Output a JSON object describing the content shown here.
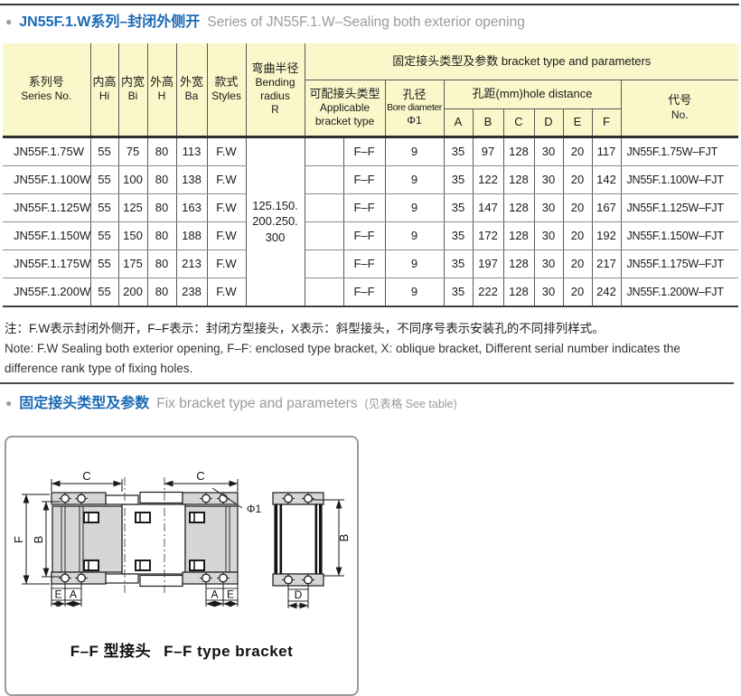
{
  "section1": {
    "bullet": "●",
    "title_zh": "JN55F.1.W系列–封闭外侧开",
    "title_en": "Series of JN55F.1.W–Sealing both exterior opening"
  },
  "table": {
    "group_header": "固定接头类型及参数 bracket type and parameters",
    "columns": {
      "series": {
        "zh": "系列号",
        "en": "Series No."
      },
      "inner_height": {
        "zh": "内高",
        "en": "Hi"
      },
      "inner_width": {
        "zh": "内宽",
        "en": "Bi"
      },
      "outer_height": {
        "zh": "外高",
        "en": "H"
      },
      "outer_width": {
        "zh": "外宽",
        "en": "Ba"
      },
      "styles": {
        "zh": "款式",
        "en": "Styles"
      },
      "bending": {
        "zh": "弯曲半径",
        "en_l1": "Bending",
        "en_l2": "radius",
        "en_l3": "R"
      },
      "applicable": {
        "zh": "可配接头类型",
        "en_l1": "Applicable",
        "en_l2": "bracket type"
      },
      "bore": {
        "zh": "孔径",
        "en": "Bore diameter",
        "sym": "Φ1"
      },
      "hole_distance": {
        "label": "孔距(mm)hole distance",
        "cols": [
          "A",
          "B",
          "C",
          "D",
          "E",
          "F"
        ]
      },
      "code": {
        "zh": "代号",
        "en": "No."
      }
    },
    "bending_radius": [
      "125.150.",
      "200.250.",
      "300"
    ],
    "rows": [
      [
        "JN55F.1.75W",
        "55",
        "75",
        "80",
        "113",
        "F.W",
        "F–F",
        "9",
        "35",
        "97",
        "128",
        "30",
        "20",
        "117",
        "JN55F.1.75W–FJT"
      ],
      [
        "JN55F.1.100W",
        "55",
        "100",
        "80",
        "138",
        "F.W",
        "F–F",
        "9",
        "35",
        "122",
        "128",
        "30",
        "20",
        "142",
        "JN55F.1.100W–FJT"
      ],
      [
        "JN55F.1.125W",
        "55",
        "125",
        "80",
        "163",
        "F.W",
        "F–F",
        "9",
        "35",
        "147",
        "128",
        "30",
        "20",
        "167",
        "JN55F.1.125W–FJT"
      ],
      [
        "JN55F.1.150W",
        "55",
        "150",
        "80",
        "188",
        "F.W",
        "F–F",
        "9",
        "35",
        "172",
        "128",
        "30",
        "20",
        "192",
        "JN55F.1.150W–FJT"
      ],
      [
        "JN55F.1.175W",
        "55",
        "175",
        "80",
        "213",
        "F.W",
        "F–F",
        "9",
        "35",
        "197",
        "128",
        "30",
        "20",
        "217",
        "JN55F.1.175W–FJT"
      ],
      [
        "JN55F.1.200W",
        "55",
        "200",
        "80",
        "238",
        "F.W",
        "F–F",
        "9",
        "35",
        "222",
        "128",
        "30",
        "20",
        "242",
        "JN55F.1.200W–FJT"
      ]
    ]
  },
  "notes": {
    "zh": "注：F.W表示封闭外侧开，F–F表示：封闭方型接头，X表示：斜型接头，不同序号表示安装孔的不同排列样式。",
    "en": "Note: F.W Sealing both exterior opening, F–F: enclosed type bracket, X: oblique bracket, Different serial number indicates the difference rank type of fixing holes."
  },
  "section2": {
    "bullet": "●",
    "title_zh": "固定接头类型及参数",
    "title_en": "Fix bracket type and parameters",
    "aside": "(见表格 See table)"
  },
  "diagram": {
    "caption_zh": "F–F 型接头",
    "caption_en": "F–F type bracket",
    "labels": {
      "c_left": "C",
      "c_right": "C",
      "phi": "Φ1",
      "f": "F",
      "b_left": "B",
      "e_left": "E",
      "a_left": "A",
      "a_right": "A",
      "e_right": "E",
      "b_right": "B",
      "d": "D"
    }
  },
  "colors": {
    "accent_blue": "#1a6ab5",
    "header_yellow": "#faf7ca",
    "muted_gray": "#9a9a9a"
  }
}
